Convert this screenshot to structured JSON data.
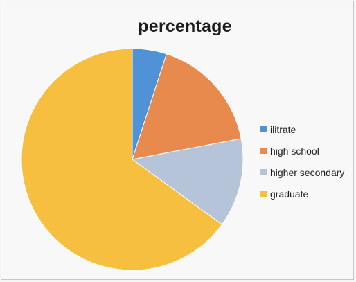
{
  "chart_data": {
    "type": "pie",
    "title": "percentage",
    "categories": [
      "ilitrate",
      "high school",
      "higher secondary",
      "graduate"
    ],
    "values": [
      5,
      17,
      13,
      65
    ],
    "colors": [
      "#4f92d6",
      "#e88a4e",
      "#b5c4d8",
      "#f6bf3f"
    ],
    "legend_position": "right"
  }
}
